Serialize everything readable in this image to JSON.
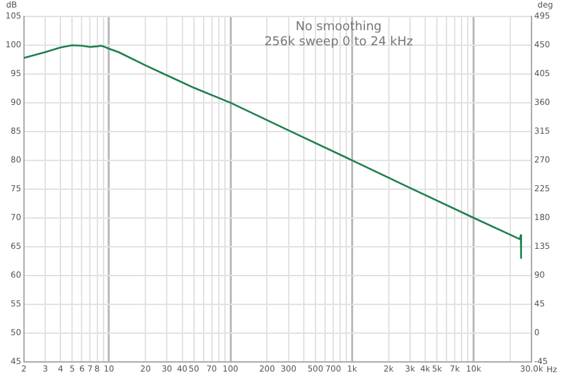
{
  "chart_data": {
    "type": "line",
    "title": "No smoothing",
    "subtitle": "256k sweep 0 to 24 kHz",
    "xlabel": "Hz",
    "ylabel": "dB",
    "y2label": "deg",
    "log": "x",
    "grid": true,
    "legend": false,
    "marker": "none",
    "line_style": "solid",
    "xlim": [
      2,
      30000
    ],
    "ylim": [
      45,
      105
    ],
    "y2lim": [
      -45,
      495
    ],
    "xticks": [
      2,
      3,
      4,
      5,
      6,
      7,
      8,
      {
        "value": 9,
        "label": null
      },
      10,
      20,
      30,
      40,
      50,
      {
        "value": 60,
        "label": null
      },
      70,
      {
        "value": 80,
        "label": null
      },
      {
        "value": 90,
        "label": null
      },
      100,
      200,
      300,
      {
        "value": 400,
        "label": null
      },
      500,
      {
        "value": 600,
        "label": null
      },
      700,
      {
        "value": 800,
        "label": null
      },
      {
        "value": 900,
        "label": null
      },
      {
        "value": 1000,
        "label": "1k"
      },
      {
        "value": 2000,
        "label": "2k"
      },
      {
        "value": 3000,
        "label": "3k"
      },
      {
        "value": 4000,
        "label": "4k"
      },
      {
        "value": 5000,
        "label": "5k"
      },
      {
        "value": 6000,
        "label": null
      },
      {
        "value": 7000,
        "label": "7k"
      },
      {
        "value": 8000,
        "label": null
      },
      {
        "value": 9000,
        "label": null
      },
      {
        "value": 10000,
        "label": "10k"
      },
      {
        "value": 20000,
        "label": null
      },
      {
        "value": 30000,
        "label": "30.0k"
      }
    ],
    "yticks": [
      45,
      50,
      55,
      60,
      65,
      70,
      75,
      80,
      85,
      90,
      95,
      100,
      105
    ],
    "y2ticks": [
      -45,
      0,
      45,
      90,
      135,
      180,
      225,
      270,
      315,
      360,
      405,
      450,
      495
    ],
    "series": [
      {
        "color": "#1e7f4e",
        "x": [
          2,
          3,
          4,
          5,
          6,
          7,
          8,
          8.5,
          9,
          10,
          12,
          20,
          50,
          100,
          300,
          1000,
          3000,
          10000,
          24000,
          24500,
          24600
        ],
        "values": [
          97.8,
          98.8,
          99.6,
          100,
          99.9,
          99.7,
          99.8,
          99.9,
          99.8,
          99.4,
          98.8,
          96.5,
          92.6,
          90,
          85.2,
          80,
          75.2,
          70,
          66.3,
          67,
          63
        ]
      }
    ]
  }
}
